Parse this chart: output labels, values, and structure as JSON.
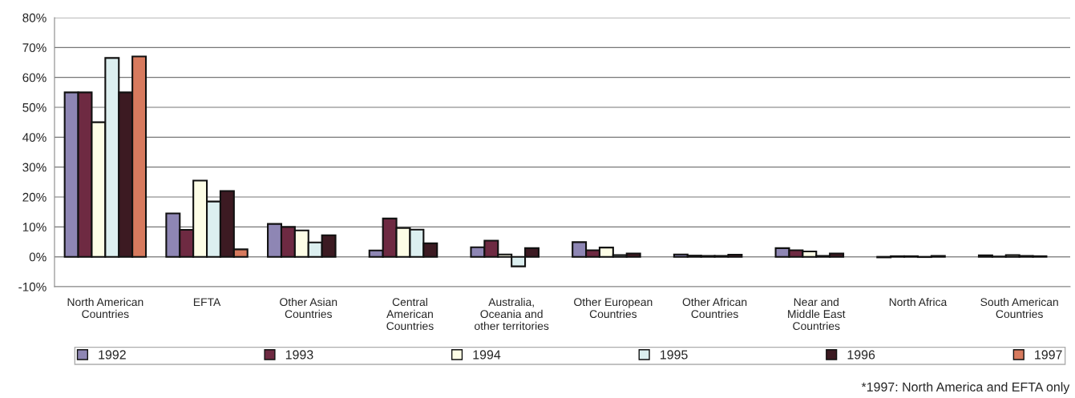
{
  "chart_data": {
    "type": "bar",
    "categories": [
      "North American\nCountries",
      "EFTA",
      "Other Asian\nCountries",
      "Central\nAmerican\nCountries",
      "Australia,\nOceania and\nother territories",
      "Other European\nCountries",
      "Other African\nCountries",
      "Near and\nMiddle East\nCountries",
      "North Africa",
      "South American\nCountries"
    ],
    "series": [
      {
        "name": "1992",
        "color": "#8e86b4",
        "values": [
          55,
          14.5,
          11,
          2.1,
          3.2,
          4.9,
          0.8,
          2.9,
          -0.2,
          0.5
        ]
      },
      {
        "name": "1993",
        "color": "#6e2a42",
        "values": [
          55,
          9,
          10,
          12.8,
          5.4,
          2.2,
          0.4,
          2.2,
          0.2,
          0.1
        ]
      },
      {
        "name": "1994",
        "color": "#fdfde6",
        "values": [
          45,
          25.5,
          8.8,
          9.6,
          0.8,
          3.1,
          0.3,
          1.8,
          0.2,
          0.6
        ]
      },
      {
        "name": "1995",
        "color": "#dceff0",
        "values": [
          66.5,
          18.5,
          4.8,
          9.1,
          -3.2,
          0.6,
          0.3,
          0.3,
          -0.1,
          0.3
        ]
      },
      {
        "name": "1996",
        "color": "#3c1a22",
        "values": [
          55,
          22,
          7.2,
          4.5,
          2.9,
          1.1,
          0.7,
          1.1,
          0.3,
          0.2
        ]
      },
      {
        "name": "1997",
        "color": "#d77a5e",
        "values": [
          67,
          2.5,
          null,
          null,
          null,
          null,
          null,
          null,
          null,
          null
        ]
      }
    ],
    "ylim": [
      -10,
      80
    ],
    "yticks": [
      {
        "value": -10,
        "label": "-10%"
      },
      {
        "value": 0,
        "label": "0%"
      },
      {
        "value": 10,
        "label": "10%"
      },
      {
        "value": 20,
        "label": "20%"
      },
      {
        "value": 30,
        "label": "30%"
      },
      {
        "value": 40,
        "label": "40%"
      },
      {
        "value": 50,
        "label": "50%"
      },
      {
        "value": 60,
        "label": "60%"
      },
      {
        "value": 70,
        "label": "70%"
      },
      {
        "value": 80,
        "label": "80%"
      }
    ],
    "grid": "y",
    "legend": "bottom",
    "annotations": [
      "*1997: North America and EFTA only"
    ]
  }
}
